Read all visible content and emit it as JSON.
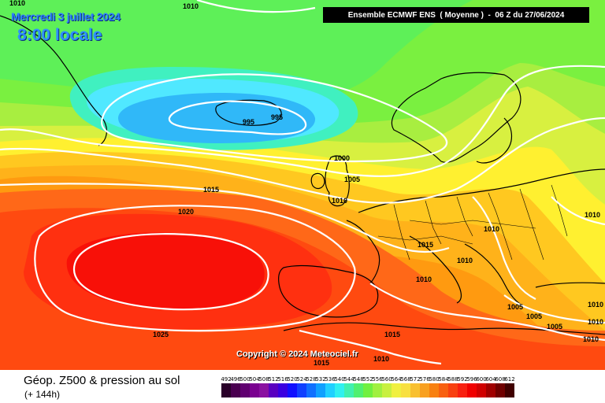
{
  "header": {
    "date": "Mercredi 3 juillet 2024",
    "time": "8:00 locale",
    "model": "Ensemble ECMWF ENS  ( Moyenne )  -  06 Z du 27/06/2024"
  },
  "copyright": "Copyright © 2024 Meteociel.fr",
  "footer": {
    "title": "Géop. Z500 & pression au sol",
    "subtitle": "(+ 144h)"
  },
  "isobar_labels": [
    "1010",
    "1010",
    "995",
    "995",
    "1000",
    "1005",
    "1010",
    "1015",
    "1020",
    "1025",
    "1010",
    "1015",
    "1010",
    "1010",
    "1005",
    "1005",
    "1005",
    "1010",
    "1010",
    "1015",
    "1010",
    "1015",
    "1010",
    "1010"
  ],
  "scale": {
    "labels": [
      "492",
      "496",
      "500",
      "504",
      "508",
      "512",
      "516",
      "520",
      "524",
      "528",
      "532",
      "536",
      "540",
      "544",
      "548",
      "552",
      "556",
      "560",
      "564",
      "568",
      "572",
      "576",
      "580",
      "584",
      "588",
      "592",
      "596",
      "600",
      "604",
      "608",
      "612"
    ],
    "colors": [
      "#2a002a",
      "#4a0050",
      "#600070",
      "#7a0090",
      "#8a10a0",
      "#5a00c0",
      "#3a00e0",
      "#1010ff",
      "#1040ff",
      "#1070ff",
      "#10a0ff",
      "#20d0ff",
      "#30f0f0",
      "#40f0b0",
      "#50f070",
      "#70f040",
      "#a0f040",
      "#c8f040",
      "#f0f040",
      "#f8e040",
      "#f8c030",
      "#f8a020",
      "#f88010",
      "#f86010",
      "#f84010",
      "#f82010",
      "#f00000",
      "#d00000",
      "#a00000",
      "#700000",
      "#400000"
    ]
  }
}
